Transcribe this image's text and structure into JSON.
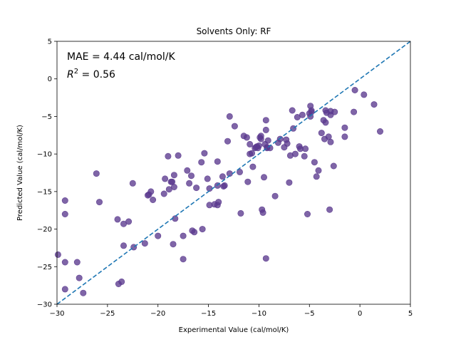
{
  "chart_data": {
    "type": "scatter",
    "title": "Solvents Only: RF",
    "xlabel": "Experimental Value (cal/mol/K)",
    "ylabel": "Predicted Value (cal/mol/K)",
    "xlim": [
      -30,
      5
    ],
    "ylim": [
      -30,
      5
    ],
    "xticks": [
      -30,
      -25,
      -20,
      -15,
      -10,
      -5,
      0,
      5
    ],
    "yticks": [
      -30,
      -25,
      -20,
      -15,
      -10,
      -5,
      0,
      5
    ],
    "grid": false,
    "annotations": {
      "mae": "MAE = 4.44 cal/mol/K",
      "r2_prefix": "R",
      "r2_sup": "2",
      "r2_suffix": " = 0.56"
    },
    "reference_line": {
      "x": [
        -30,
        5
      ],
      "y": [
        -30,
        5
      ],
      "style": "dashed",
      "color": "#1f77b4"
    },
    "point_color": "#5b3a8e",
    "points": [
      [
        -29.9,
        -23.4
      ],
      [
        -29.2,
        -16.2
      ],
      [
        -29.2,
        -18.0
      ],
      [
        -29.2,
        -24.4
      ],
      [
        -29.2,
        -28.0
      ],
      [
        -28.0,
        -24.4
      ],
      [
        -27.8,
        -26.5
      ],
      [
        -27.4,
        -28.5
      ],
      [
        -26.1,
        -12.6
      ],
      [
        -25.8,
        -16.4
      ],
      [
        -24.0,
        -18.7
      ],
      [
        -23.9,
        -27.3
      ],
      [
        -23.6,
        -27.0
      ],
      [
        -23.4,
        -19.3
      ],
      [
        -23.4,
        -22.2
      ],
      [
        -22.9,
        -19.0
      ],
      [
        -22.5,
        -13.9
      ],
      [
        -22.4,
        -22.4
      ],
      [
        -21.3,
        -21.9
      ],
      [
        -21.0,
        -15.5
      ],
      [
        -20.9,
        -15.4
      ],
      [
        -20.7,
        -15.0
      ],
      [
        -20.5,
        -16.1
      ],
      [
        -20.0,
        -20.9
      ],
      [
        -19.4,
        -15.3
      ],
      [
        -19.3,
        -13.3
      ],
      [
        -19.0,
        -10.3
      ],
      [
        -18.9,
        -14.7
      ],
      [
        -18.7,
        -13.7
      ],
      [
        -18.6,
        -13.7
      ],
      [
        -18.5,
        -22.0
      ],
      [
        -18.4,
        -14.4
      ],
      [
        -18.4,
        -12.8
      ],
      [
        -18.3,
        -18.6
      ],
      [
        -18.0,
        -10.2
      ],
      [
        -17.5,
        -20.9
      ],
      [
        -17.5,
        -24.0
      ],
      [
        -17.1,
        -12.2
      ],
      [
        -16.9,
        -13.9
      ],
      [
        -16.7,
        -12.9
      ],
      [
        -16.6,
        -20.2
      ],
      [
        -16.4,
        -20.4
      ],
      [
        -16.2,
        -14.5
      ],
      [
        -15.7,
        -11.1
      ],
      [
        -15.6,
        -20.0
      ],
      [
        -15.4,
        -9.9
      ],
      [
        -15.1,
        -13.3
      ],
      [
        -14.9,
        -14.6
      ],
      [
        -14.9,
        -16.8
      ],
      [
        -14.4,
        -16.7
      ],
      [
        -14.1,
        -14.2
      ],
      [
        -14.1,
        -16.8
      ],
      [
        -14.0,
        -16.4
      ],
      [
        -14.1,
        -11.0
      ],
      [
        -13.6,
        -13.0
      ],
      [
        -13.5,
        -14.3
      ],
      [
        -13.4,
        -14.2
      ],
      [
        -13.1,
        -8.3
      ],
      [
        -12.9,
        -12.6
      ],
      [
        -12.9,
        -5.0
      ],
      [
        -12.4,
        -6.3
      ],
      [
        -11.9,
        -12.4
      ],
      [
        -11.8,
        -17.9
      ],
      [
        -11.5,
        -7.6
      ],
      [
        -11.2,
        -7.8
      ],
      [
        -11.1,
        -13.7
      ],
      [
        -10.9,
        -10.0
      ],
      [
        -10.9,
        -8.7
      ],
      [
        -10.7,
        -9.9
      ],
      [
        -10.6,
        -11.7
      ],
      [
        -10.4,
        -9.2
      ],
      [
        -10.3,
        -9.1
      ],
      [
        -10.2,
        -9.0
      ],
      [
        -10.1,
        -9.2
      ],
      [
        -10.0,
        -8.9
      ],
      [
        -9.9,
        -7.8
      ],
      [
        -9.8,
        -7.6
      ],
      [
        -9.8,
        -8.0
      ],
      [
        -9.7,
        -17.4
      ],
      [
        -9.6,
        -17.8
      ],
      [
        -9.5,
        -13.1
      ],
      [
        -9.4,
        -8.7
      ],
      [
        -9.3,
        -5.5
      ],
      [
        -9.3,
        -6.8
      ],
      [
        -9.3,
        -23.9
      ],
      [
        -9.2,
        -9.1
      ],
      [
        -9.2,
        -9.2
      ],
      [
        -9.1,
        -8.2
      ],
      [
        -8.9,
        -9.2
      ],
      [
        -8.4,
        -15.6
      ],
      [
        -8.1,
        -8.5
      ],
      [
        -7.9,
        -8.0
      ],
      [
        -7.5,
        -9.1
      ],
      [
        -7.3,
        -8.1
      ],
      [
        -7.2,
        -8.6
      ],
      [
        -7.0,
        -13.8
      ],
      [
        -6.9,
        -10.2
      ],
      [
        -6.7,
        -4.2
      ],
      [
        -6.6,
        -6.6
      ],
      [
        -6.4,
        -10.0
      ],
      [
        -6.2,
        -5.1
      ],
      [
        -6.0,
        -9.0
      ],
      [
        -5.9,
        -9.3
      ],
      [
        -5.7,
        -4.8
      ],
      [
        -5.5,
        -10.3
      ],
      [
        -5.4,
        -9.3
      ],
      [
        -5.2,
        -18.0
      ],
      [
        -5.0,
        -4.6
      ],
      [
        -4.9,
        -5.0
      ],
      [
        -4.9,
        -3.6
      ],
      [
        -4.8,
        -4.2
      ],
      [
        -4.8,
        -4.4
      ],
      [
        -4.5,
        -11.1
      ],
      [
        -4.3,
        -13.0
      ],
      [
        -4.1,
        -12.2
      ],
      [
        -3.8,
        -7.2
      ],
      [
        -3.6,
        -5.5
      ],
      [
        -3.5,
        -8.0
      ],
      [
        -3.4,
        -4.2
      ],
      [
        -3.4,
        -5.8
      ],
      [
        -3.3,
        -4.5
      ],
      [
        -3.1,
        -7.7
      ],
      [
        -3.0,
        -17.4
      ],
      [
        -2.9,
        -8.4
      ],
      [
        -2.9,
        -4.3
      ],
      [
        -2.9,
        -4.8
      ],
      [
        -2.6,
        -11.6
      ],
      [
        -2.5,
        -4.4
      ],
      [
        -1.5,
        -6.5
      ],
      [
        -1.5,
        -7.7
      ],
      [
        -0.6,
        -4.4
      ],
      [
        -0.5,
        -1.5
      ],
      [
        0.4,
        -2.1
      ],
      [
        1.4,
        -3.4
      ],
      [
        2.0,
        -7.0
      ]
    ]
  }
}
